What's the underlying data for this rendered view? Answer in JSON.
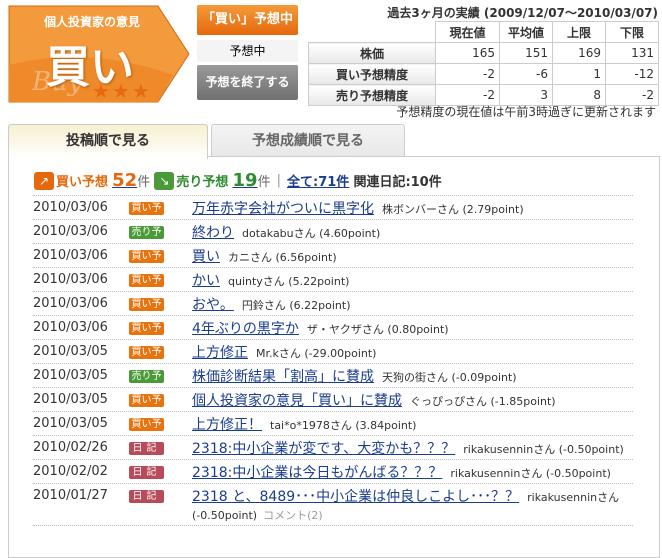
{
  "badge": {
    "subtitle": "個人投資家の意見",
    "verdict": "買い",
    "watermark": "Buy",
    "stars": 3,
    "color": "#f08a24"
  },
  "status": {
    "button": "「買い」予想中",
    "text": "予想中",
    "end_button": "予想を終了する"
  },
  "performance": {
    "title": "過去3ヶ月の実績 (2009/12/07〜2010/03/07)",
    "columns": [
      "現在値",
      "平均値",
      "上限",
      "下限"
    ],
    "rows": [
      {
        "label": "株価",
        "values": [
          "165",
          "151",
          "169",
          "131"
        ]
      },
      {
        "label": "買い予想精度",
        "values": [
          "-2",
          "-6",
          "1",
          "-12"
        ]
      },
      {
        "label": "売り予想精度",
        "values": [
          "-2",
          "3",
          "8",
          "-2"
        ]
      }
    ],
    "note": "予想精度の現在値は午前3時過ぎに更新されます"
  },
  "tabs": [
    {
      "label": "投稿順で見る",
      "active": true
    },
    {
      "label": "予想成績順で見る",
      "active": false
    }
  ],
  "summary": {
    "buy_label": "買い予想",
    "buy_count": "52",
    "unit": "件",
    "sell_label": "売り予想",
    "sell_count": "19",
    "all_link": "全て:71件",
    "diary": "関連日記:10件"
  },
  "posts": [
    {
      "date": "2010/03/06",
      "tag": "買い予想",
      "type": "buy",
      "title": "万年赤字会社がついに黒字化",
      "user": "株ボンバーさん (2.79point)"
    },
    {
      "date": "2010/03/06",
      "tag": "売り予想",
      "type": "sell",
      "title": "終わり",
      "user": "dotakabuさん (4.60point)"
    },
    {
      "date": "2010/03/06",
      "tag": "買い予想",
      "type": "buy",
      "title": "買い",
      "user": "カニさん (6.56point)"
    },
    {
      "date": "2010/03/06",
      "tag": "買い予想",
      "type": "buy",
      "title": "かい",
      "user": "quintyさん (5.22point)"
    },
    {
      "date": "2010/03/06",
      "tag": "買い予想",
      "type": "buy",
      "title": "おや。",
      "user": "円鈴さん (6.22point)"
    },
    {
      "date": "2010/03/06",
      "tag": "買い予想",
      "type": "buy",
      "title": "4年ぶりの黒字か",
      "user": "ザ・ヤクザさん (0.80point)"
    },
    {
      "date": "2010/03/05",
      "tag": "買い予想",
      "type": "buy",
      "title": "上方修正",
      "user": "Mr.kさん (-29.00point)"
    },
    {
      "date": "2010/03/05",
      "tag": "売り予想",
      "type": "sell",
      "title": "株価診断結果「割高」に賛成",
      "user": "天狗の街さん (-0.09point)"
    },
    {
      "date": "2010/03/05",
      "tag": "買い予想",
      "type": "buy",
      "title": "個人投資家の意見「買い」に賛成",
      "user": "ぐっぴっぴさん (-1.85point)"
    },
    {
      "date": "2010/03/05",
      "tag": "買い予想",
      "type": "buy",
      "title": "上方修正！",
      "user": "tai*o*1978さん (3.84point)"
    },
    {
      "date": "2010/02/26",
      "tag": "日記",
      "type": "diary",
      "title": "2318:中小企業が変です、大変かも？？？",
      "user": "rikakusenninさん (-0.50point)"
    },
    {
      "date": "2010/02/02",
      "tag": "日記",
      "type": "diary",
      "title": "2318:中小企業は今日もがんばる？？？",
      "user": "rikakusenninさん (-0.50point)"
    },
    {
      "date": "2010/01/27",
      "tag": "日記",
      "type": "diary",
      "title": "2318 と、8489･･･中小企業は仲良しこよし･･･？？",
      "user": "rikakusenninさん (-0.50point)",
      "comment": "コメント(2)"
    }
  ]
}
